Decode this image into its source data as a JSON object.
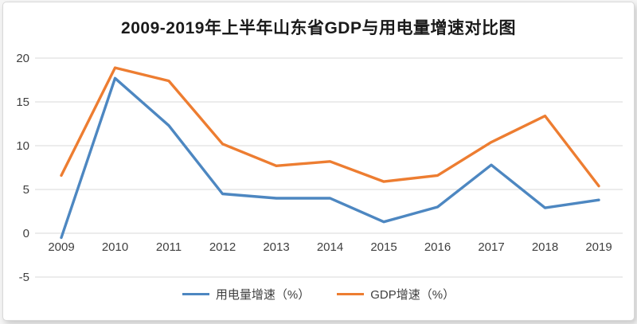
{
  "chart_data": {
    "type": "line",
    "title": "2009-2019年上半年山东省GDP与用电量增速对比图",
    "categories": [
      "2009",
      "2010",
      "2011",
      "2012",
      "2013",
      "2014",
      "2015",
      "2016",
      "2017",
      "2018",
      "2019"
    ],
    "series": [
      {
        "id": "electricity-growth",
        "name": "用电量增速（%）",
        "color": "#4d87c1",
        "values": [
          -0.5,
          17.7,
          12.3,
          4.5,
          4.0,
          4.0,
          1.3,
          3.0,
          7.8,
          2.9,
          3.8
        ]
      },
      {
        "id": "gdp-growth",
        "name": "GDP增速（%）",
        "color": "#ed7d31",
        "values": [
          6.6,
          18.9,
          17.4,
          10.2,
          7.7,
          8.2,
          5.9,
          6.6,
          10.4,
          13.4,
          5.4
        ]
      }
    ],
    "ylim": [
      -5,
      20
    ],
    "ytick_step": 5,
    "yticks": [
      -5,
      0,
      5,
      10,
      15,
      20
    ],
    "grid": "horizontal",
    "gridline_color": "#d9d9d9",
    "legend_position": "bottom"
  }
}
